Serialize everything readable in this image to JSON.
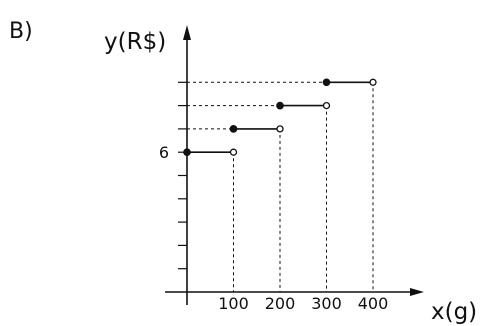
{
  "option_label": "B)",
  "chart_data": {
    "type": "line",
    "step": true,
    "xlabel": "x(g)",
    "ylabel": "y(R$)",
    "x_ticks": [
      "100",
      "200",
      "300",
      "400"
    ],
    "y_tick_labels": [
      {
        "value": 6,
        "text": "6"
      }
    ],
    "xlim": [
      0,
      400
    ],
    "ylim": [
      0,
      11.3
    ],
    "grid": false,
    "segments": [
      {
        "x_start": 0,
        "x_end": 100,
        "y": 6,
        "start": "closed",
        "end": "open"
      },
      {
        "x_start": 100,
        "x_end": 200,
        "y": 7,
        "start": "closed",
        "end": "open"
      },
      {
        "x_start": 200,
        "x_end": 300,
        "y": 8,
        "start": "closed",
        "end": "open"
      },
      {
        "x_start": 300,
        "x_end": 400,
        "y": 9,
        "start": "closed",
        "end": "open"
      }
    ]
  }
}
